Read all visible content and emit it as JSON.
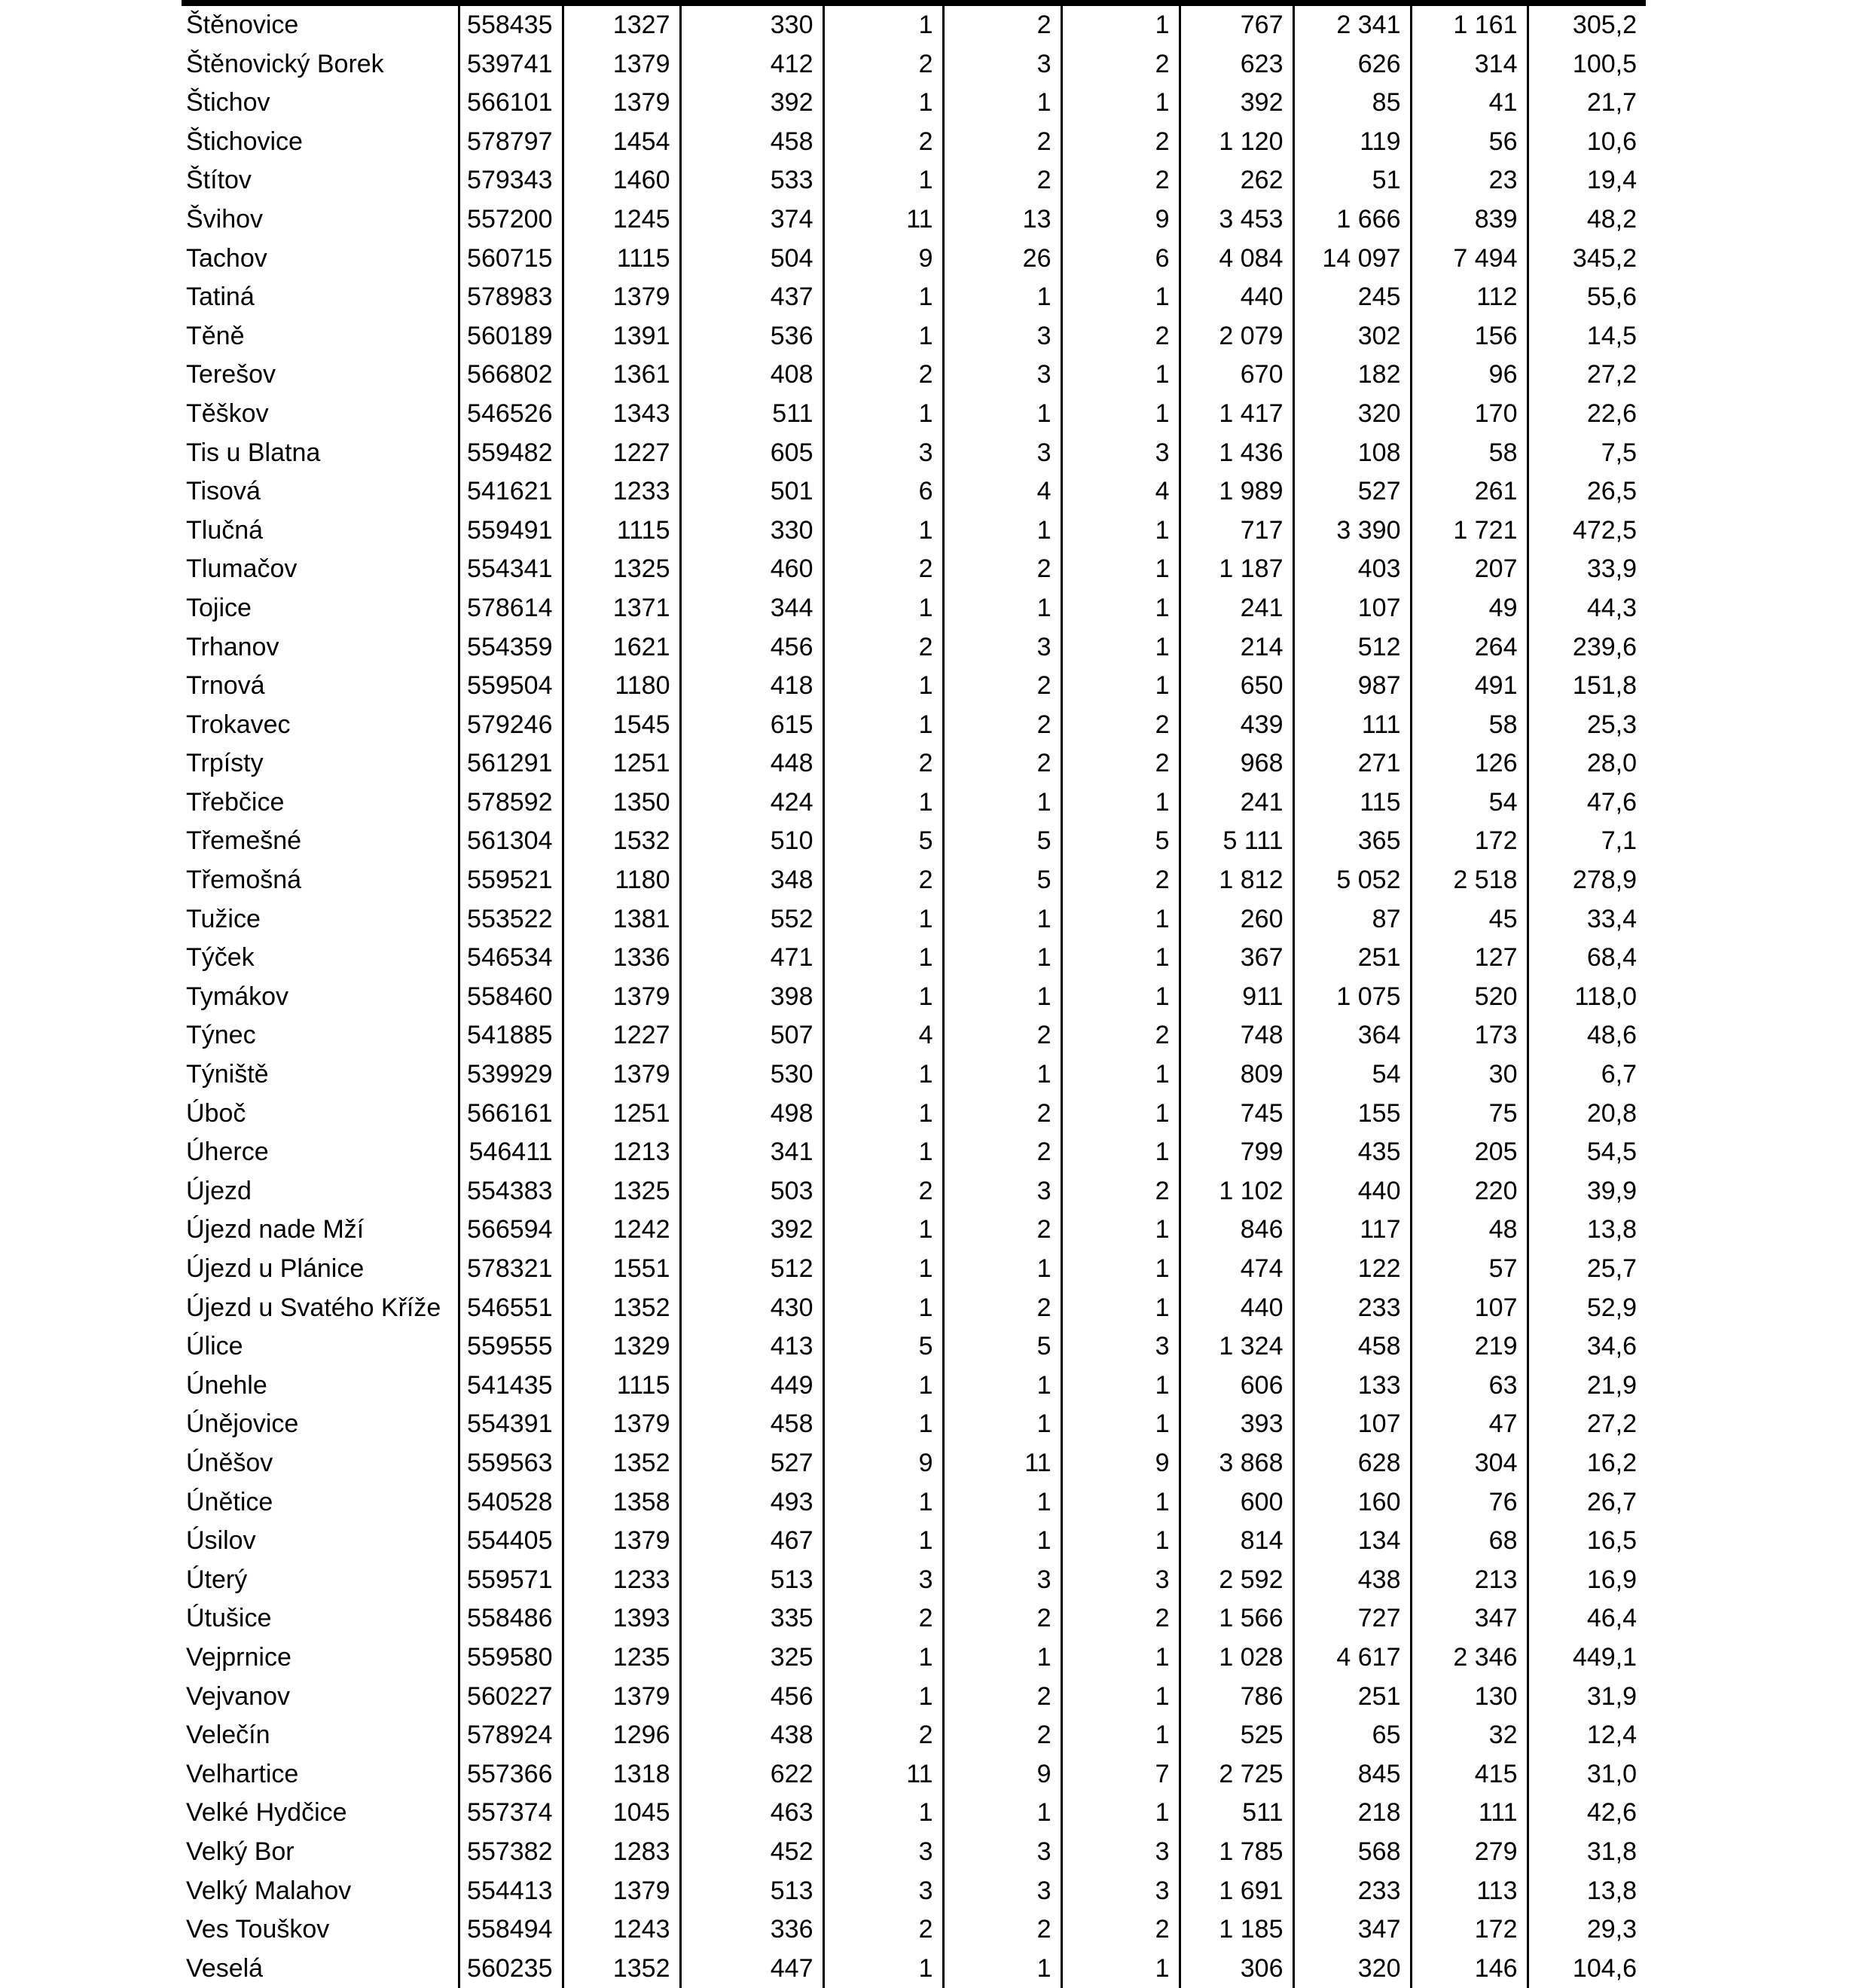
{
  "table": {
    "rows": [
      [
        "Štěnovice",
        "558435",
        "1327",
        "330",
        "1",
        "2",
        "1",
        "767",
        "2 341",
        "1 161",
        "305,2"
      ],
      [
        "Štěnovický Borek",
        "539741",
        "1379",
        "412",
        "2",
        "3",
        "2",
        "623",
        "626",
        "314",
        "100,5"
      ],
      [
        "Štichov",
        "566101",
        "1379",
        "392",
        "1",
        "1",
        "1",
        "392",
        "85",
        "41",
        "21,7"
      ],
      [
        "Štichovice",
        "578797",
        "1454",
        "458",
        "2",
        "2",
        "2",
        "1 120",
        "119",
        "56",
        "10,6"
      ],
      [
        "Štítov",
        "579343",
        "1460",
        "533",
        "1",
        "2",
        "2",
        "262",
        "51",
        "23",
        "19,4"
      ],
      [
        "Švihov",
        "557200",
        "1245",
        "374",
        "11",
        "13",
        "9",
        "3 453",
        "1 666",
        "839",
        "48,2"
      ],
      [
        "Tachov",
        "560715",
        "1115",
        "504",
        "9",
        "26",
        "6",
        "4 084",
        "14 097",
        "7 494",
        "345,2"
      ],
      [
        "Tatiná",
        "578983",
        "1379",
        "437",
        "1",
        "1",
        "1",
        "440",
        "245",
        "112",
        "55,6"
      ],
      [
        "Těně",
        "560189",
        "1391",
        "536",
        "1",
        "3",
        "2",
        "2 079",
        "302",
        "156",
        "14,5"
      ],
      [
        "Terešov",
        "566802",
        "1361",
        "408",
        "2",
        "3",
        "1",
        "670",
        "182",
        "96",
        "27,2"
      ],
      [
        "Těškov",
        "546526",
        "1343",
        "511",
        "1",
        "1",
        "1",
        "1 417",
        "320",
        "170",
        "22,6"
      ],
      [
        "Tis u Blatna",
        "559482",
        "1227",
        "605",
        "3",
        "3",
        "3",
        "1 436",
        "108",
        "58",
        "7,5"
      ],
      [
        "Tisová",
        "541621",
        "1233",
        "501",
        "6",
        "4",
        "4",
        "1 989",
        "527",
        "261",
        "26,5"
      ],
      [
        "Tlučná",
        "559491",
        "1115",
        "330",
        "1",
        "1",
        "1",
        "717",
        "3 390",
        "1 721",
        "472,5"
      ],
      [
        "Tlumačov",
        "554341",
        "1325",
        "460",
        "2",
        "2",
        "1",
        "1 187",
        "403",
        "207",
        "33,9"
      ],
      [
        "Tojice",
        "578614",
        "1371",
        "344",
        "1",
        "1",
        "1",
        "241",
        "107",
        "49",
        "44,3"
      ],
      [
        "Trhanov",
        "554359",
        "1621",
        "456",
        "2",
        "3",
        "1",
        "214",
        "512",
        "264",
        "239,6"
      ],
      [
        "Trnová",
        "559504",
        "1180",
        "418",
        "1",
        "2",
        "1",
        "650",
        "987",
        "491",
        "151,8"
      ],
      [
        "Trokavec",
        "579246",
        "1545",
        "615",
        "1",
        "2",
        "2",
        "439",
        "111",
        "58",
        "25,3"
      ],
      [
        "Trpísty",
        "561291",
        "1251",
        "448",
        "2",
        "2",
        "2",
        "968",
        "271",
        "126",
        "28,0"
      ],
      [
        "Třebčice",
        "578592",
        "1350",
        "424",
        "1",
        "1",
        "1",
        "241",
        "115",
        "54",
        "47,6"
      ],
      [
        "Třemešné",
        "561304",
        "1532",
        "510",
        "5",
        "5",
        "5",
        "5 111",
        "365",
        "172",
        "7,1"
      ],
      [
        "Třemošná",
        "559521",
        "1180",
        "348",
        "2",
        "5",
        "2",
        "1 812",
        "5 052",
        "2 518",
        "278,9"
      ],
      [
        "Tužice",
        "553522",
        "1381",
        "552",
        "1",
        "1",
        "1",
        "260",
        "87",
        "45",
        "33,4"
      ],
      [
        "Týček",
        "546534",
        "1336",
        "471",
        "1",
        "1",
        "1",
        "367",
        "251",
        "127",
        "68,4"
      ],
      [
        "Tymákov",
        "558460",
        "1379",
        "398",
        "1",
        "1",
        "1",
        "911",
        "1 075",
        "520",
        "118,0"
      ],
      [
        "Týnec",
        "541885",
        "1227",
        "507",
        "4",
        "2",
        "2",
        "748",
        "364",
        "173",
        "48,6"
      ],
      [
        "Týniště",
        "539929",
        "1379",
        "530",
        "1",
        "1",
        "1",
        "809",
        "54",
        "30",
        "6,7"
      ],
      [
        "Úboč",
        "566161",
        "1251",
        "498",
        "1",
        "2",
        "1",
        "745",
        "155",
        "75",
        "20,8"
      ],
      [
        "Úherce",
        "546411",
        "1213",
        "341",
        "1",
        "2",
        "1",
        "799",
        "435",
        "205",
        "54,5"
      ],
      [
        "Újezd",
        "554383",
        "1325",
        "503",
        "2",
        "3",
        "2",
        "1 102",
        "440",
        "220",
        "39,9"
      ],
      [
        "Újezd nade Mží",
        "566594",
        "1242",
        "392",
        "1",
        "2",
        "1",
        "846",
        "117",
        "48",
        "13,8"
      ],
      [
        "Újezd u Plánice",
        "578321",
        "1551",
        "512",
        "1",
        "1",
        "1",
        "474",
        "122",
        "57",
        "25,7"
      ],
      [
        "Újezd u Svatého Kříže",
        "546551",
        "1352",
        "430",
        "1",
        "2",
        "1",
        "440",
        "233",
        "107",
        "52,9"
      ],
      [
        "Úlice",
        "559555",
        "1329",
        "413",
        "5",
        "5",
        "3",
        "1 324",
        "458",
        "219",
        "34,6"
      ],
      [
        "Únehle",
        "541435",
        "1115",
        "449",
        "1",
        "1",
        "1",
        "606",
        "133",
        "63",
        "21,9"
      ],
      [
        "Únějovice",
        "554391",
        "1379",
        "458",
        "1",
        "1",
        "1",
        "393",
        "107",
        "47",
        "27,2"
      ],
      [
        "Úněšov",
        "559563",
        "1352",
        "527",
        "9",
        "11",
        "9",
        "3 868",
        "628",
        "304",
        "16,2"
      ],
      [
        "Únětice",
        "540528",
        "1358",
        "493",
        "1",
        "1",
        "1",
        "600",
        "160",
        "76",
        "26,7"
      ],
      [
        "Úsilov",
        "554405",
        "1379",
        "467",
        "1",
        "1",
        "1",
        "814",
        "134",
        "68",
        "16,5"
      ],
      [
        "Úterý",
        "559571",
        "1233",
        "513",
        "3",
        "3",
        "3",
        "2 592",
        "438",
        "213",
        "16,9"
      ],
      [
        "Útušice",
        "558486",
        "1393",
        "335",
        "2",
        "2",
        "2",
        "1 566",
        "727",
        "347",
        "46,4"
      ],
      [
        "Vejprnice",
        "559580",
        "1235",
        "325",
        "1",
        "1",
        "1",
        "1 028",
        "4 617",
        "2 346",
        "449,1"
      ],
      [
        "Vejvanov",
        "560227",
        "1379",
        "456",
        "1",
        "2",
        "1",
        "786",
        "251",
        "130",
        "31,9"
      ],
      [
        "Velečín",
        "578924",
        "1296",
        "438",
        "2",
        "2",
        "1",
        "525",
        "65",
        "32",
        "12,4"
      ],
      [
        "Velhartice",
        "557366",
        "1318",
        "622",
        "11",
        "9",
        "7",
        "2 725",
        "845",
        "415",
        "31,0"
      ],
      [
        "Velké Hydčice",
        "557374",
        "1045",
        "463",
        "1",
        "1",
        "1",
        "511",
        "218",
        "111",
        "42,6"
      ],
      [
        "Velký Bor",
        "557382",
        "1283",
        "452",
        "3",
        "3",
        "3",
        "1 785",
        "568",
        "279",
        "31,8"
      ],
      [
        "Velký Malahov",
        "554413",
        "1379",
        "513",
        "3",
        "3",
        "3",
        "1 691",
        "233",
        "113",
        "13,8"
      ],
      [
        "Ves Touškov",
        "558494",
        "1243",
        "336",
        "2",
        "2",
        "2",
        "1 185",
        "347",
        "172",
        "29,3"
      ],
      [
        "Veselá",
        "560235",
        "1352",
        "447",
        "1",
        "1",
        "1",
        "306",
        "320",
        "146",
        "104,6"
      ]
    ]
  }
}
